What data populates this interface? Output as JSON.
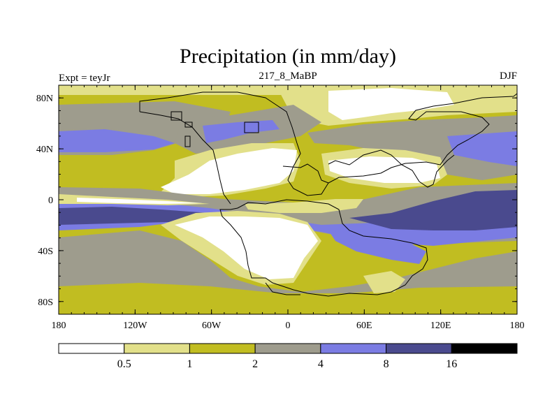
{
  "chart_data": {
    "type": "heatmap",
    "title": "Precipitation (in mm/day)",
    "left_label": "Expt = teyJr",
    "center_label": "217_8_MaBP",
    "right_label": "DJF",
    "x_ticks": [
      "180",
      "120W",
      "60W",
      "0",
      "60E",
      "120E",
      "180"
    ],
    "x_tick_values": [
      -180,
      -120,
      -60,
      0,
      60,
      120,
      180
    ],
    "y_ticks": [
      "80N",
      "40N",
      "0",
      "40S",
      "80S"
    ],
    "y_tick_values": [
      80,
      40,
      0,
      -40,
      -80
    ],
    "xlim": [
      -180,
      180
    ],
    "ylim": [
      -90,
      90
    ],
    "units": "mm/day",
    "colorbar": {
      "levels": [
        "0.5",
        "1",
        "2",
        "4",
        "8",
        "16"
      ],
      "level_values": [
        0.5,
        1,
        2,
        4,
        8,
        16
      ],
      "colors": [
        "#ffffff",
        "#e2e08a",
        "#c1bd21",
        "#9e9c8d",
        "#7b7ce3",
        "#4a4a8e",
        "#000000"
      ]
    }
  }
}
